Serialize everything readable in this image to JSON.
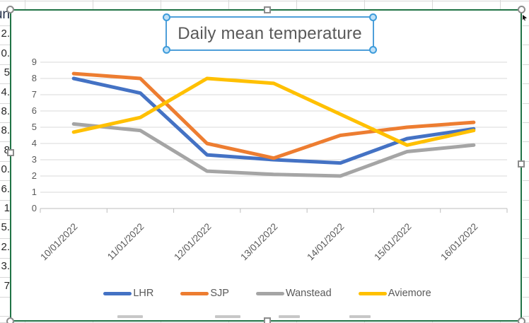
{
  "chart": {
    "title": "Daily mean temperature"
  },
  "chart_data": {
    "type": "line",
    "title": "Daily mean temperature",
    "categories": [
      "10/01/2022",
      "11/01/2022",
      "12/01/2022",
      "13/01/2022",
      "14/01/2022",
      "15/01/2022",
      "16/01/2022"
    ],
    "series": [
      {
        "name": "LHR",
        "color": "#4472C4",
        "values": [
          8.0,
          7.1,
          3.3,
          3.0,
          2.8,
          4.3,
          4.9
        ]
      },
      {
        "name": "SJP",
        "color": "#ED7D31",
        "values": [
          8.3,
          8.0,
          4.0,
          3.1,
          4.5,
          5.0,
          5.3
        ]
      },
      {
        "name": "Wanstead",
        "color": "#A5A5A5",
        "values": [
          5.2,
          4.8,
          2.3,
          2.1,
          2.0,
          3.5,
          3.9
        ]
      },
      {
        "name": "Aviemore",
        "color": "#FFC000",
        "values": [
          4.7,
          5.6,
          8.0,
          7.7,
          5.8,
          3.9,
          4.8
        ]
      }
    ],
    "ylim": [
      0,
      9
    ],
    "y_ticks": [
      "0",
      "1",
      "2",
      "3",
      "4",
      "5",
      "6",
      "7",
      "8",
      "9"
    ],
    "xlabel": "",
    "ylabel": "",
    "grid": true,
    "legend_position": "bottom",
    "x_tick_rotation_deg": 45
  },
  "spreadsheet": {
    "left_column_fragments": [
      "un",
      "2.",
      "0.",
      "5",
      "4.",
      "8.",
      "8.",
      "8",
      "0.",
      "6.",
      "1",
      "5.",
      "2.",
      "3.",
      "7"
    ]
  },
  "selection": {
    "chart_border_color": "#217346",
    "title_box_border_color": "#4E9FD9",
    "handle_fill": "#FFFFFF",
    "handle_border": "#8C8C8C",
    "title_handle_fill": "#BFE0F7",
    "title_handle_border": "#3E9CDB"
  },
  "colors": {
    "axis_text": "#595959",
    "gridline": "#D9D9D9",
    "axis_line": "#BDBDBD",
    "title_text": "#595959"
  }
}
